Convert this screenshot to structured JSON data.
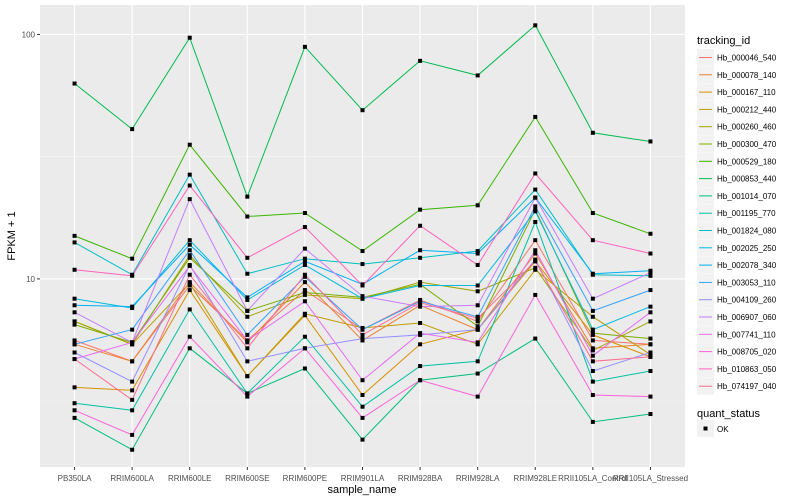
{
  "chart_data": {
    "type": "line",
    "xlabel": "sample_name",
    "ylabel": "FPKM + 1",
    "y_scale": "log10",
    "ylim": [
      1.7,
      132
    ],
    "y_ticks": [
      10,
      100
    ],
    "y_tick_labels": [
      "10",
      "100"
    ],
    "grid": true,
    "legend_position": "right",
    "categories": [
      "PB350LA",
      "RRIM600LA",
      "RRIM600LE",
      "RRIM600SE",
      "RRIM600PE",
      "RRIM901LA",
      "RRIM928BA",
      "RRIM928LA",
      "RRIM928LE",
      "RRII105LA_Control",
      "RRII105LA_Stressed"
    ],
    "legend_title": "tracking_id",
    "series": [
      {
        "name": "Hb_000046_540",
        "color": "#F8766D",
        "values": [
          5.6,
          4.6,
          9.4,
          5.6,
          9.0,
          6.2,
          8.2,
          6.7,
          14.4,
          5.6,
          5.4
        ]
      },
      {
        "name": "Hb_000078_140",
        "color": "#EA8331",
        "values": [
          5.4,
          4.6,
          9.7,
          5.5,
          9.7,
          5.6,
          7.8,
          6.2,
          12.7,
          5.2,
          5.4
        ]
      },
      {
        "name": "Hb_000167_110",
        "color": "#D89000",
        "values": [
          3.6,
          3.5,
          9.0,
          4.0,
          7.1,
          3.35,
          5.4,
          6.2,
          11.8,
          5.9,
          4.8
        ]
      },
      {
        "name": "Hb_000212_440",
        "color": "#C09B00",
        "values": [
          6.7,
          5.4,
          9.6,
          4.0,
          7.2,
          6.3,
          6.6,
          5.4,
          10.9,
          7.0,
          4.9
        ]
      },
      {
        "name": "Hb_000260_460",
        "color": "#A3A500",
        "values": [
          6.7,
          5.4,
          12.5,
          7.0,
          8.6,
          8.3,
          9.7,
          8.9,
          11.1,
          5.1,
          6.7
        ]
      },
      {
        "name": "Hb_000300_470",
        "color": "#7CAE00",
        "values": [
          6.5,
          5.5,
          12.2,
          7.4,
          8.8,
          8.4,
          9.5,
          6.4,
          19.2,
          6.0,
          5.7
        ]
      },
      {
        "name": "Hb_000529_180",
        "color": "#39B600",
        "values": [
          15,
          12.1,
          35.4,
          18,
          18.6,
          13,
          19.2,
          20,
          46,
          18.6,
          15.3
        ]
      },
      {
        "name": "Hb_000853_440",
        "color": "#00BB4E",
        "values": [
          63,
          41,
          97,
          21.7,
          89,
          49,
          78,
          68,
          109,
          39.6,
          36.5
        ]
      },
      {
        "name": "Hb_001014_070",
        "color": "#00BF7D",
        "values": [
          2.7,
          2.0,
          5.2,
          3.4,
          4.3,
          2.2,
          3.85,
          4.1,
          5.7,
          2.6,
          2.8
        ]
      },
      {
        "name": "Hb_001195_770",
        "color": "#00C1A3",
        "values": [
          3.1,
          2.9,
          7.5,
          3.4,
          5.8,
          3.0,
          4.4,
          4.6,
          17.1,
          3.8,
          4.2
        ]
      },
      {
        "name": "Hb_001824_080",
        "color": "#00BFC4",
        "values": [
          14.1,
          10.4,
          26.7,
          10.5,
          12.1,
          11.5,
          12.2,
          13.0,
          23.2,
          10.4,
          10.3
        ]
      },
      {
        "name": "Hb_002025_250",
        "color": "#00BAE0",
        "values": [
          8.3,
          7.6,
          14.4,
          8.2,
          11.4,
          8.3,
          9.4,
          9.4,
          18.9,
          6.2,
          7.7
        ]
      },
      {
        "name": "Hb_002078_340",
        "color": "#00B0F6",
        "values": [
          7.8,
          7.7,
          13.8,
          8.4,
          11.8,
          9.5,
          13.1,
          12.7,
          21.5,
          10.5,
          10.8
        ]
      },
      {
        "name": "Hb_003053_110",
        "color": "#35A2FF",
        "values": [
          5.4,
          6.2,
          13.1,
          5.9,
          10.2,
          6.2,
          8.1,
          7.0,
          19.8,
          7.4,
          9.0
        ]
      },
      {
        "name": "Hb_004109_260",
        "color": "#9590FF",
        "values": [
          5.0,
          3.8,
          11.4,
          4.6,
          5.2,
          5.7,
          5.9,
          6.2,
          12.0,
          4.2,
          5.0
        ]
      },
      {
        "name": "Hb_006907_060",
        "color": "#C77CFF",
        "values": [
          7.3,
          5.5,
          21.2,
          7.4,
          13.3,
          8.5,
          7.7,
          7.8,
          21.5,
          8.3,
          10.6
        ]
      },
      {
        "name": "Hb_007741_110",
        "color": "#E76BF3",
        "values": [
          4.7,
          5.5,
          11.3,
          5.6,
          8.1,
          3.85,
          6.0,
          5.5,
          13.1,
          4.85,
          7.3
        ]
      },
      {
        "name": "Hb_008705_020",
        "color": "#FA62DB",
        "values": [
          2.9,
          2.3,
          5.8,
          3.3,
          5.2,
          2.7,
          3.85,
          3.3,
          8.6,
          3.35,
          3.3
        ]
      },
      {
        "name": "Hb_010863_050",
        "color": "#FF62BC",
        "values": [
          10.9,
          10.3,
          24.1,
          12.2,
          16.3,
          9.4,
          16.5,
          11.4,
          27.0,
          14.4,
          12.7
        ]
      },
      {
        "name": "Hb_074197_040",
        "color": "#FF6C91",
        "values": [
          4.7,
          3.2,
          10.4,
          5.2,
          10.4,
          5.9,
          8.0,
          6.9,
          11.8,
          4.6,
          4.8
        ]
      }
    ],
    "point_legend": {
      "title": "quant_status",
      "entries": [
        "OK"
      ],
      "color": "#000000"
    }
  }
}
